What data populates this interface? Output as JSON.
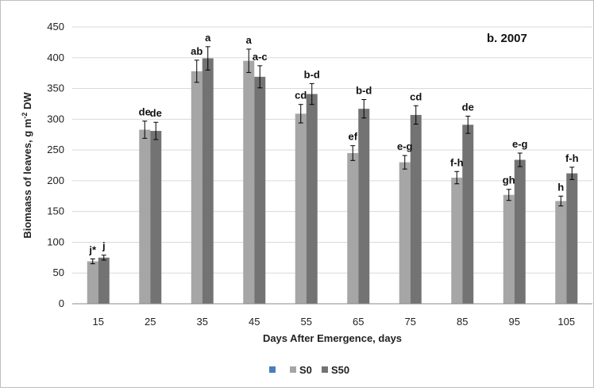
{
  "chart_data": {
    "type": "bar",
    "title": "",
    "panel_label": "b. 2007",
    "xlabel": "Days After Emergence, days",
    "ylabel_main": "Biomaass of leaves, g m",
    "ylabel_sup": "-2",
    "ylabel_tail": " DW",
    "ylim": [
      0,
      450
    ],
    "ytick_step": 50,
    "grid": true,
    "legend_position": "bottom",
    "categories": [
      "15",
      "25",
      "35",
      "45",
      "55",
      "65",
      "75",
      "85",
      "95",
      "105"
    ],
    "series": [
      {
        "name": "S0",
        "color": "#a6a6a6",
        "values": [
          69,
          283,
          378,
          395,
          309,
          245,
          230,
          205,
          177,
          167
        ],
        "errors": [
          4,
          14,
          18,
          19,
          15,
          12,
          11,
          10,
          9,
          8
        ],
        "labels": [
          "j*",
          "de",
          "ab",
          "a",
          "cd",
          "ef",
          "e-g",
          "f-h",
          "gh",
          "h"
        ]
      },
      {
        "name": "S50",
        "color": "#737373",
        "values": [
          75,
          281,
          399,
          369,
          341,
          317,
          307,
          291,
          234,
          212
        ],
        "errors": [
          4,
          14,
          19,
          18,
          17,
          15,
          15,
          14,
          11,
          10
        ],
        "labels": [
          "j",
          "de",
          "a",
          "a-c",
          "b-d",
          "b-d",
          "cd",
          "de",
          "e-g",
          "f-h"
        ]
      }
    ],
    "legend_extra_marker_color": "#4a7ebb"
  }
}
